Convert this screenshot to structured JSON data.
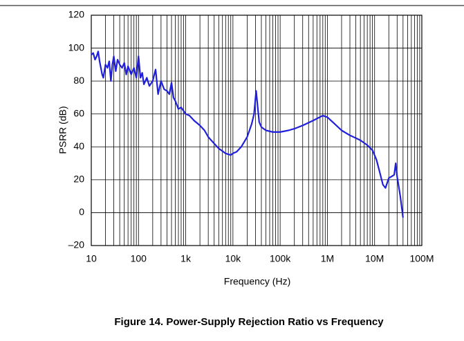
{
  "chart_data": {
    "type": "line",
    "caption": "Figure 14. Power-Supply Rejection Ratio vs Frequency",
    "x_label": "Frequency (Hz)",
    "y_label": "PSRR (dB)",
    "xscale": "log",
    "grid": true,
    "xlim": [
      10,
      100000000
    ],
    "ylim": [
      -20,
      120
    ],
    "xticks": [
      10,
      100,
      {
        "value": 1000,
        "label": "1k"
      },
      {
        "value": 10000,
        "label": "10k"
      },
      {
        "value": 100000,
        "label": "100k"
      },
      {
        "value": 1000000,
        "label": "1M"
      },
      {
        "value": 10000000,
        "label": "10M"
      },
      {
        "value": 100000000,
        "label": "100M"
      }
    ],
    "yticks": [
      {
        "value": -20,
        "label": "–20"
      },
      0,
      20,
      40,
      60,
      80,
      100,
      120
    ],
    "series": [
      {
        "name": "PSRR",
        "color": "#1f1fdc",
        "x": [
          10,
          11,
          12,
          13,
          14,
          15,
          17,
          18,
          20,
          22,
          24,
          26,
          28,
          30,
          33,
          36,
          40,
          45,
          50,
          55,
          60,
          70,
          80,
          90,
          100,
          110,
          120,
          130,
          150,
          170,
          200,
          230,
          260,
          300,
          350,
          400,
          450,
          500,
          550,
          600,
          700,
          800,
          1000,
          1200,
          1500,
          2000,
          2500,
          3000,
          4000,
          5000,
          7000,
          9000,
          10000,
          12000,
          15000,
          20000,
          25000,
          28000,
          31000,
          33000,
          36000,
          40000,
          50000,
          70000,
          100000,
          150000,
          200000,
          300000,
          500000,
          800000,
          1000000,
          1300000,
          2000000,
          3000000,
          5000000,
          7000000,
          9000000,
          11000000,
          13000000,
          15000000,
          17000000,
          20000000,
          23000000,
          26000000,
          28000000,
          30000000,
          35000000,
          40000000
        ],
        "values": [
          96,
          97,
          93,
          95,
          98,
          92,
          84,
          82,
          90,
          88,
          92,
          80,
          90,
          95,
          86,
          93,
          90,
          88,
          91,
          84,
          89,
          84,
          88,
          82,
          95,
          82,
          85,
          78,
          82,
          77,
          80,
          87,
          72,
          80,
          75,
          74,
          72,
          79,
          70,
          68,
          63,
          64,
          60,
          59,
          56,
          53,
          50,
          46,
          42,
          39,
          36,
          35,
          36,
          37,
          40,
          46,
          54,
          60,
          74,
          66,
          55,
          52,
          50,
          49,
          49,
          50,
          51,
          53,
          56,
          59,
          58,
          55,
          50,
          47,
          44,
          41,
          38,
          32,
          24,
          17,
          15,
          21,
          22,
          23,
          30,
          22,
          10,
          -3
        ]
      }
    ]
  }
}
